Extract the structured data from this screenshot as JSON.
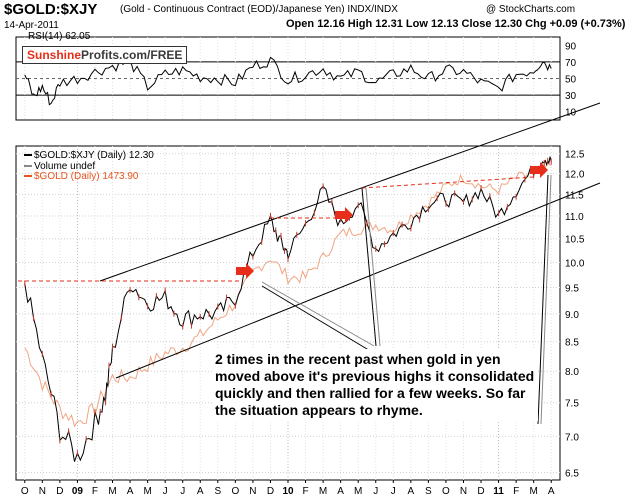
{
  "header": {
    "title": "$GOLD:$XJY",
    "subtitle": "(Gold - Continuous Contract (EOD)/Japanese Yen)  INDX/INDX",
    "copyright": "@ StockCharts.com",
    "date": "14-Apr-2011",
    "open_label": "Open",
    "open": "12.16",
    "high_label": "High",
    "high": "12.31",
    "low_label": "Low",
    "low": "12.13",
    "close_label": "Close",
    "close": "12.30",
    "chg_label": "Chg",
    "chg": "+0.09 (+0.73%)",
    "chg_color": "#000000"
  },
  "rsi": {
    "label": "RSI(14) 62.05",
    "ticks": [
      "90",
      "70",
      "50",
      "30",
      "10"
    ]
  },
  "brand": {
    "part1": "Sunshine",
    "part2": "Profits.com/FREE"
  },
  "legend": {
    "main": "$GOLD:$XJY (Daily) 12.30",
    "volume": "Volume undef",
    "gold": "$GOLD (Daily) 1473.90",
    "main_color": "#000000",
    "gold_color": "#e8541e"
  },
  "annotation": "2 times in the recent past when gold in yen moved above it's previous highs it consolidated quickly and then rallied for a few weeks. So far the situation appears to rhyme.",
  "chart_data": {
    "type": "line",
    "x_tick_labels": [
      "O",
      "N",
      "D",
      "09",
      "F",
      "M",
      "A",
      "M",
      "J",
      "J",
      "A",
      "S",
      "O",
      "N",
      "D",
      "10",
      "F",
      "M",
      "A",
      "M",
      "J",
      "J",
      "A",
      "S",
      "O",
      "N",
      "D",
      "11",
      "F",
      "M",
      "A"
    ],
    "ylim": [
      6.4,
      12.7
    ],
    "y_ticks": [
      "12.5",
      "12.0",
      "11.5",
      "11.0",
      "10.5",
      "10.0",
      "9.5",
      "9.0",
      "8.5",
      "8.0",
      "7.5",
      "7.0",
      "6.5"
    ],
    "series": [
      {
        "name": "$GOLD:$XJY (Daily)",
        "color": "#000000",
        "x": [
          0,
          1,
          2,
          3,
          4,
          4.6,
          5,
          6,
          7,
          8,
          9,
          10,
          11,
          12,
          13,
          14,
          14.6,
          15,
          16,
          17,
          18,
          19,
          20,
          21,
          22,
          23,
          24,
          25,
          26,
          27,
          28,
          29,
          29.6,
          30
        ],
        "y": [
          9.6,
          8.2,
          7.1,
          6.7,
          7.2,
          7.6,
          8.3,
          9.6,
          9.2,
          9.3,
          8.9,
          9.0,
          9.0,
          9.3,
          10.2,
          10.9,
          10.4,
          10.2,
          10.8,
          11.6,
          10.8,
          11.3,
          10.3,
          10.6,
          10.9,
          11.3,
          11.4,
          11.3,
          11.6,
          11.0,
          11.6,
          12.1,
          12.4,
          12.3
        ]
      },
      {
        "name": "$GOLD (Daily)",
        "color": "#f0a582",
        "x": [
          0,
          1,
          2,
          3,
          4,
          5,
          6,
          7,
          8,
          9,
          10,
          11,
          12,
          13,
          14,
          15,
          16,
          17,
          18,
          19,
          20,
          21,
          22,
          23,
          24,
          25,
          26,
          27,
          28,
          29,
          30
        ],
        "y": [
          8.4,
          7.8,
          7.4,
          7.2,
          7.4,
          7.9,
          7.9,
          8.1,
          8.3,
          8.4,
          8.6,
          8.9,
          9.2,
          9.8,
          10.1,
          9.7,
          9.7,
          10.1,
          10.6,
          10.7,
          10.8,
          10.7,
          11.0,
          11.3,
          11.7,
          11.9,
          11.7,
          11.6,
          11.9,
          12.0,
          12.2
        ]
      }
    ],
    "rsi_series": {
      "name": "RSI(14)",
      "ylim": [
        0,
        100
      ],
      "x": [
        0,
        0.5,
        1,
        1.5,
        2,
        3,
        4,
        5,
        6,
        7,
        8,
        9,
        10,
        11,
        12,
        13,
        14,
        15,
        16,
        17,
        18,
        19,
        20,
        21,
        22,
        23,
        24,
        25,
        26,
        27,
        28,
        29,
        29.5,
        30
      ],
      "y": [
        55,
        28,
        40,
        20,
        45,
        50,
        58,
        65,
        70,
        40,
        55,
        60,
        52,
        50,
        45,
        65,
        72,
        48,
        55,
        62,
        50,
        58,
        45,
        55,
        62,
        50,
        60,
        58,
        45,
        38,
        55,
        60,
        72,
        62
      ]
    },
    "grid": true,
    "legend_position": "top-left"
  }
}
